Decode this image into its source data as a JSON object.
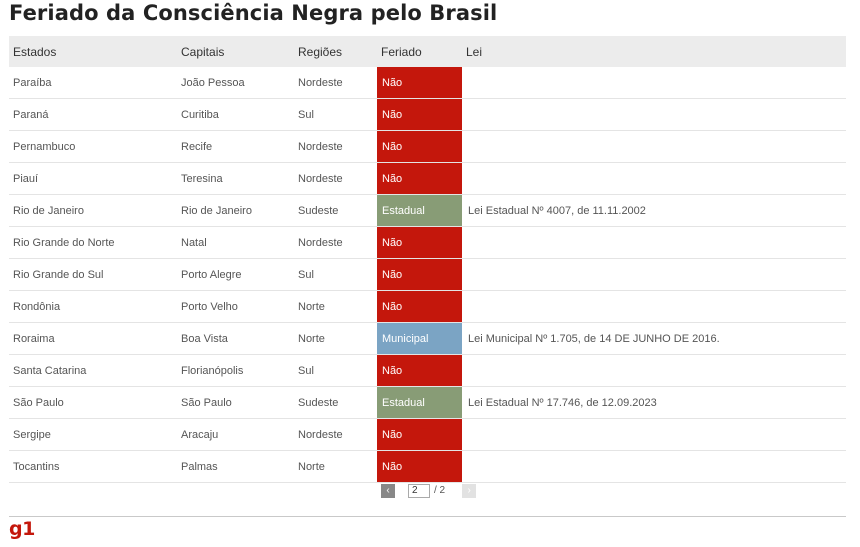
{
  "title": "Feriado da Consciência Negra pelo Brasil",
  "headers": [
    "Estados",
    "Capitais",
    "Regiões",
    "Feriado",
    "Lei"
  ],
  "colors": {
    "nao": "#c4170c",
    "estadual": "#889c76",
    "municipal": "#7ba4c4"
  },
  "rows": [
    {
      "estado": "Paraíba",
      "capital": "João Pessoa",
      "regiao": "Nordeste",
      "feriado": "Não",
      "tipo": "nao",
      "lei": ""
    },
    {
      "estado": "Paraná",
      "capital": "Curitiba",
      "regiao": "Sul",
      "feriado": "Não",
      "tipo": "nao",
      "lei": ""
    },
    {
      "estado": "Pernambuco",
      "capital": "Recife",
      "regiao": "Nordeste",
      "feriado": "Não",
      "tipo": "nao",
      "lei": ""
    },
    {
      "estado": "Piauí",
      "capital": "Teresina",
      "regiao": "Nordeste",
      "feriado": "Não",
      "tipo": "nao",
      "lei": ""
    },
    {
      "estado": "Rio de Janeiro",
      "capital": "Rio de Janeiro",
      "regiao": "Sudeste",
      "feriado": "Estadual",
      "tipo": "estadual",
      "lei": "Lei Estadual Nº 4007, de 11.11.2002"
    },
    {
      "estado": "Rio Grande do Norte",
      "capital": "Natal",
      "regiao": "Nordeste",
      "feriado": "Não",
      "tipo": "nao",
      "lei": ""
    },
    {
      "estado": "Rio Grande do Sul",
      "capital": "Porto Alegre",
      "regiao": "Sul",
      "feriado": "Não",
      "tipo": "nao",
      "lei": ""
    },
    {
      "estado": "Rondônia",
      "capital": "Porto Velho",
      "regiao": "Norte",
      "feriado": "Não",
      "tipo": "nao",
      "lei": ""
    },
    {
      "estado": "Roraima",
      "capital": "Boa Vista",
      "regiao": "Norte",
      "feriado": "Municipal",
      "tipo": "municipal",
      "lei": "Lei Municipal Nº 1.705, de 14 DE JUNHO DE 2016."
    },
    {
      "estado": "Santa Catarina",
      "capital": "Florianópolis",
      "regiao": "Sul",
      "feriado": "Não",
      "tipo": "nao",
      "lei": ""
    },
    {
      "estado": "São Paulo",
      "capital": "São Paulo",
      "regiao": "Sudeste",
      "feriado": "Estadual",
      "tipo": "estadual",
      "lei": "Lei Estadual Nº 17.746, de 12.09.2023"
    },
    {
      "estado": "Sergipe",
      "capital": "Aracaju",
      "regiao": "Nordeste",
      "feriado": "Não",
      "tipo": "nao",
      "lei": ""
    },
    {
      "estado": "Tocantins",
      "capital": "Palmas",
      "regiao": "Norte",
      "feriado": "Não",
      "tipo": "nao",
      "lei": ""
    }
  ],
  "pagination": {
    "prev_icon": "‹",
    "current_page": "2",
    "total": "/ 2",
    "next_icon": "›"
  },
  "footer": {
    "logo": "g1"
  }
}
